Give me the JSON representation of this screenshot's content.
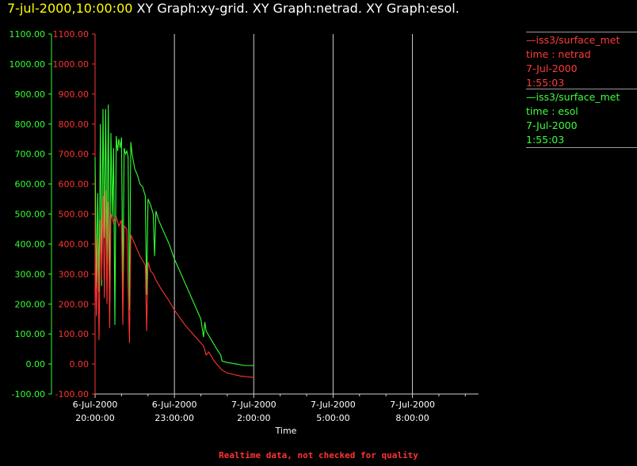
{
  "header": {
    "time": "7-jul-2000,10:00:00",
    "graphs": " XY Graph:xy-grid.  XY Graph:netrad.  XY Graph:esol."
  },
  "legend": [
    {
      "lines": [
        "—iss3/surface_met",
        "time : netrad",
        "7-Jul-2000",
        "1:55:03"
      ],
      "color": "#ff3b3b"
    },
    {
      "lines": [
        "—iss3/surface_met",
        "time : esol",
        "7-Jul-2000",
        "1:55:03"
      ],
      "color": "#3bff3b"
    }
  ],
  "footer": {
    "note": "Realtime data, not checked for quality"
  },
  "chart_data": {
    "type": "line",
    "xlabel": "Time",
    "x_ticks": [
      {
        "date": "6-Jul-2000",
        "time": "20:00:00"
      },
      {
        "date": "6-Jul-2000",
        "time": "23:00:00"
      },
      {
        "date": "7-Jul-2000",
        "time": "2:00:00"
      },
      {
        "date": "7-Jul-2000",
        "time": "5:00:00"
      },
      {
        "date": "7-Jul-2000",
        "time": "8:00:00"
      }
    ],
    "xlim": [
      "2000-07-06 20:00",
      "2000-07-07 10:30"
    ],
    "ylim": [
      -100,
      1100
    ],
    "y_ticks": [
      "1100.00",
      "1000.00",
      "900.00",
      "800.00",
      "700.00",
      "600.00",
      "500.00",
      "400.00",
      "300.00",
      "200.00",
      "100.00",
      "0.00",
      "-100.00"
    ],
    "grid": "vertical lines at major x ticks",
    "series": [
      {
        "color": "#33ff33",
        "points": [
          [
            "2000-07-06 20:00",
            690
          ],
          [
            "2000-07-06 20:03",
            250
          ],
          [
            "2000-07-06 20:06",
            570
          ],
          [
            "2000-07-06 20:09",
            240
          ],
          [
            "2000-07-06 20:12",
            800
          ],
          [
            "2000-07-06 20:15",
            260
          ],
          [
            "2000-07-06 20:18",
            850
          ],
          [
            "2000-07-06 20:21",
            420
          ],
          [
            "2000-07-06 20:24",
            850
          ],
          [
            "2000-07-06 20:27",
            330
          ],
          [
            "2000-07-06 20:30",
            865
          ],
          [
            "2000-07-06 20:33",
            180
          ],
          [
            "2000-07-06 20:36",
            770
          ],
          [
            "2000-07-06 20:39",
            490
          ],
          [
            "2000-07-06 20:42",
            720
          ],
          [
            "2000-07-06 20:45",
            130
          ],
          [
            "2000-07-06 20:48",
            760
          ],
          [
            "2000-07-06 20:51",
            710
          ],
          [
            "2000-07-06 20:54",
            750
          ],
          [
            "2000-07-06 20:57",
            720
          ],
          [
            "2000-07-06 21:00",
            755
          ],
          [
            "2000-07-06 21:03",
            240
          ],
          [
            "2000-07-06 21:06",
            720
          ],
          [
            "2000-07-06 21:09",
            700
          ],
          [
            "2000-07-06 21:12",
            710
          ],
          [
            "2000-07-06 21:15",
            690
          ],
          [
            "2000-07-06 21:18",
            180
          ],
          [
            "2000-07-06 21:21",
            740
          ],
          [
            "2000-07-06 21:24",
            700
          ],
          [
            "2000-07-06 21:30",
            650
          ],
          [
            "2000-07-06 21:36",
            630
          ],
          [
            "2000-07-06 21:42",
            600
          ],
          [
            "2000-07-06 21:48",
            590
          ],
          [
            "2000-07-06 21:54",
            560
          ],
          [
            "2000-07-06 21:57",
            230
          ],
          [
            "2000-07-06 22:00",
            550
          ],
          [
            "2000-07-06 22:06",
            530
          ],
          [
            "2000-07-06 22:12",
            500
          ],
          [
            "2000-07-06 22:15",
            360
          ],
          [
            "2000-07-06 22:18",
            510
          ],
          [
            "2000-07-06 22:24",
            480
          ],
          [
            "2000-07-06 22:36",
            440
          ],
          [
            "2000-07-06 22:48",
            400
          ],
          [
            "2000-07-06 23:00",
            350
          ],
          [
            "2000-07-06 23:12",
            310
          ],
          [
            "2000-07-06 23:24",
            270
          ],
          [
            "2000-07-06 23:36",
            230
          ],
          [
            "2000-07-06 23:48",
            190
          ],
          [
            "2000-07-07 00:00",
            150
          ],
          [
            "2000-07-07 00:06",
            90
          ],
          [
            "2000-07-07 00:09",
            140
          ],
          [
            "2000-07-07 00:12",
            110
          ],
          [
            "2000-07-07 00:24",
            80
          ],
          [
            "2000-07-07 00:36",
            50
          ],
          [
            "2000-07-07 00:45",
            30
          ],
          [
            "2000-07-07 00:48",
            10
          ],
          [
            "2000-07-07 01:00",
            5
          ],
          [
            "2000-07-07 01:20",
            0
          ],
          [
            "2000-07-07 01:40",
            -5
          ],
          [
            "2000-07-07 02:00",
            -5
          ]
        ]
      },
      {
        "color": "#ff3333",
        "points": [
          [
            "2000-07-06 20:00",
            380
          ],
          [
            "2000-07-06 20:03",
            160
          ],
          [
            "2000-07-06 20:06",
            420
          ],
          [
            "2000-07-06 20:09",
            80
          ],
          [
            "2000-07-06 20:12",
            480
          ],
          [
            "2000-07-06 20:15",
            280
          ],
          [
            "2000-07-06 20:18",
            560
          ],
          [
            "2000-07-06 20:21",
            220
          ],
          [
            "2000-07-06 20:24",
            580
          ],
          [
            "2000-07-06 20:27",
            200
          ],
          [
            "2000-07-06 20:30",
            540
          ],
          [
            "2000-07-06 20:33",
            120
          ],
          [
            "2000-07-06 20:36",
            500
          ],
          [
            "2000-07-06 20:42",
            470
          ],
          [
            "2000-07-06 20:48",
            490
          ],
          [
            "2000-07-06 20:54",
            460
          ],
          [
            "2000-07-06 21:00",
            480
          ],
          [
            "2000-07-06 21:03",
            130
          ],
          [
            "2000-07-06 21:06",
            460
          ],
          [
            "2000-07-06 21:12",
            450
          ],
          [
            "2000-07-06 21:18",
            70
          ],
          [
            "2000-07-06 21:21",
            430
          ],
          [
            "2000-07-06 21:30",
            400
          ],
          [
            "2000-07-06 21:42",
            360
          ],
          [
            "2000-07-06 21:54",
            330
          ],
          [
            "2000-07-06 21:57",
            110
          ],
          [
            "2000-07-06 22:00",
            340
          ],
          [
            "2000-07-06 22:06",
            310
          ],
          [
            "2000-07-06 22:12",
            300
          ],
          [
            "2000-07-06 22:18",
            280
          ],
          [
            "2000-07-06 22:30",
            250
          ],
          [
            "2000-07-06 22:48",
            210
          ],
          [
            "2000-07-06 23:00",
            180
          ],
          [
            "2000-07-06 23:24",
            130
          ],
          [
            "2000-07-06 23:48",
            90
          ],
          [
            "2000-07-07 00:06",
            60
          ],
          [
            "2000-07-07 00:12",
            30
          ],
          [
            "2000-07-07 00:18",
            40
          ],
          [
            "2000-07-07 00:30",
            10
          ],
          [
            "2000-07-07 00:48",
            -20
          ],
          [
            "2000-07-07 01:00",
            -30
          ],
          [
            "2000-07-07 01:30",
            -40
          ],
          [
            "2000-07-07 02:00",
            -45
          ]
        ]
      }
    ]
  }
}
